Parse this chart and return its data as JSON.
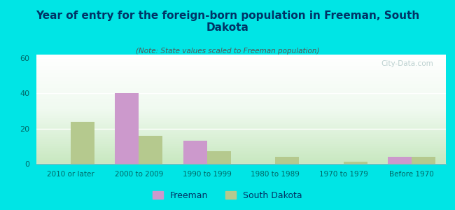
{
  "title": "Year of entry for the foreign-born population in Freeman, South\nDakota",
  "subtitle": "(Note: State values scaled to Freeman population)",
  "categories": [
    "2010 or later",
    "2000 to 2009",
    "1990 to 1999",
    "1980 to 1989",
    "1970 to 1979",
    "Before 1970"
  ],
  "freeman_values": [
    0,
    40,
    13,
    0,
    0,
    4
  ],
  "sd_values": [
    24,
    16,
    7,
    4,
    1,
    4
  ],
  "freeman_color": "#cc99cc",
  "sd_color": "#b5c98e",
  "background_color": "#00e5e5",
  "ylim": [
    0,
    62
  ],
  "yticks": [
    0,
    20,
    40,
    60
  ],
  "bar_width": 0.35,
  "watermark": "City-Data.com",
  "legend_freeman": "Freeman",
  "legend_sd": "South Dakota",
  "title_color": "#003366",
  "subtitle_color": "#555555",
  "tick_label_color": "#006666"
}
